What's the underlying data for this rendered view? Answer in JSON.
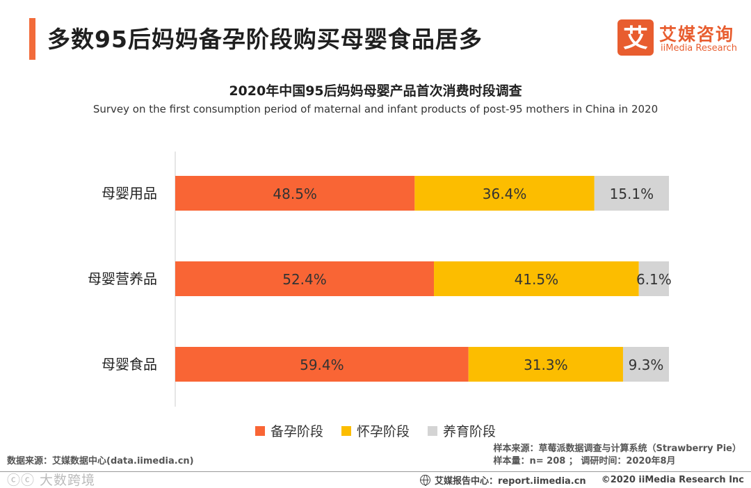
{
  "header": {
    "headline": "多数95后妈妈备孕阶段购买母婴食品居多",
    "accent_color": "#f26b3a"
  },
  "logo": {
    "mark": "艾",
    "name_cn": "艾媒咨询",
    "name_en": "iiMedia Research",
    "color": "#e85d2f"
  },
  "chart_data": {
    "type": "bar",
    "orientation": "horizontal",
    "stacked": true,
    "title": "2020年中国95后妈妈母婴产品首次消费时段调查",
    "subtitle": "Survey on the first consumption period of maternal and infant products of post-95 mothers in China in 2020",
    "categories": [
      "母婴用品",
      "母婴营养品",
      "母婴食品"
    ],
    "series": [
      {
        "name": "备孕阶段",
        "color": "#f96535",
        "values": [
          48.5,
          52.4,
          59.4
        ],
        "labels": [
          "48.5%",
          "52.4%",
          "59.4%"
        ]
      },
      {
        "name": "怀孕阶段",
        "color": "#fcbd00",
        "values": [
          36.4,
          41.5,
          31.3
        ],
        "labels": [
          "36.4%",
          "41.5%",
          "31.3%"
        ]
      },
      {
        "name": "养育阶段",
        "color": "#d4d4d4",
        "values": [
          15.1,
          6.1,
          9.3
        ],
        "labels": [
          "15.1%",
          "6.1%",
          "9.3%"
        ]
      }
    ],
    "xlim": [
      0,
      100
    ],
    "unit": "%",
    "legend_position": "bottom",
    "grid": false
  },
  "source": {
    "left": "数据来源：艾媒数据中心(data.iimedia.cn)",
    "sample_source": "样本来源：草莓派数据调查与计算系统（Strawberry Pie）",
    "sample_info": "样本量：n= 208 ； 调研时间：2020年8月"
  },
  "footer": {
    "watermark": "ⓒⓒ 大数跨境",
    "report_center": "艾媒报告中心：report.iimedia.cn",
    "copyright": "©2020  iiMedia Research  Inc"
  }
}
